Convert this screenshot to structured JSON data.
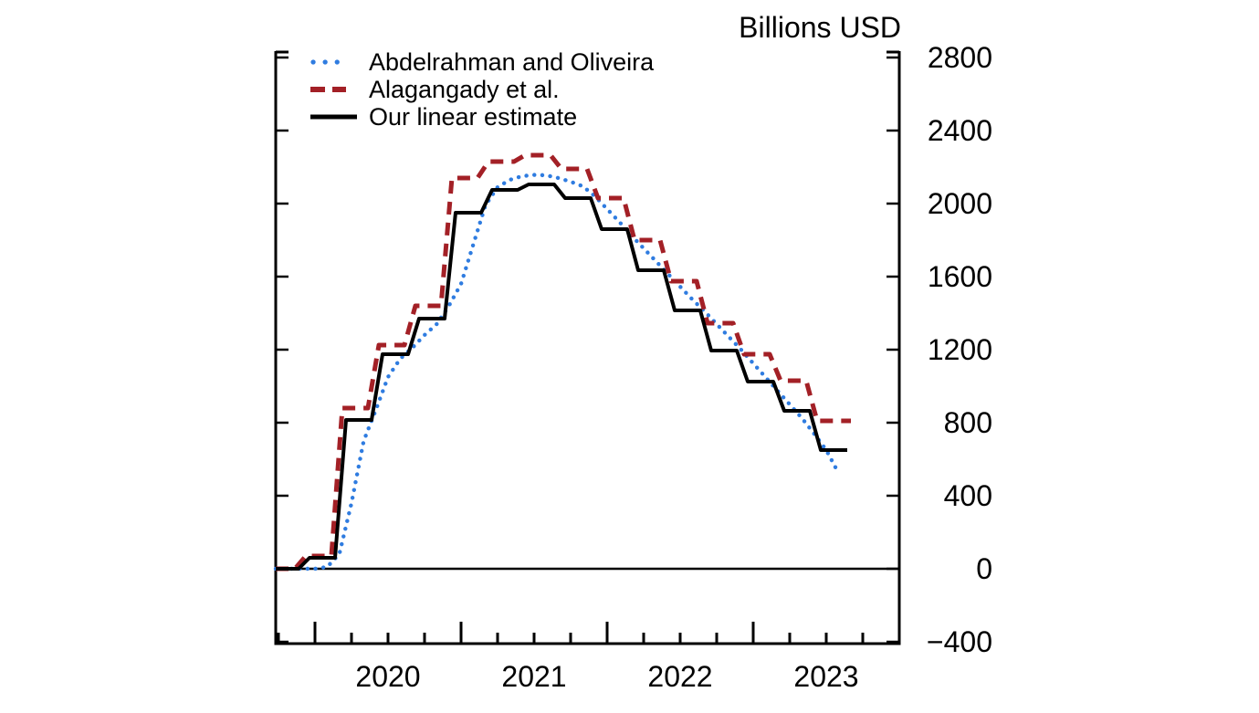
{
  "title": "Billions USD",
  "chart_data": {
    "type": "line",
    "title": "Billions USD",
    "unit": "Billions USD",
    "x_axis": {
      "labels": [
        "2020",
        "2021",
        "2022",
        "2023"
      ],
      "start": "2019-Q4",
      "end": "2024-Q1",
      "minor_ticks": "quarterly",
      "major_ticks": "yearly"
    },
    "y_axis": {
      "min": -400,
      "max": 2800,
      "step": 400,
      "ticks": [
        2800,
        2400,
        2000,
        1600,
        1200,
        800,
        400,
        0,
        -400
      ],
      "side": "right",
      "grid": false
    },
    "legend_position": "top-left-inside",
    "series": [
      {
        "name": "Abdelrahman and Oliveira",
        "color": "#2F7CE0",
        "line_style": "dotted",
        "frequency": "monthly",
        "start": "2019-10",
        "values": [
          0,
          0,
          0,
          0,
          10,
          80,
          360,
          700,
          870,
          1050,
          1150,
          1210,
          1280,
          1340,
          1440,
          1560,
          1775,
          1990,
          2090,
          2130,
          2150,
          2157,
          2155,
          2140,
          2120,
          2095,
          2040,
          1970,
          1900,
          1825,
          1755,
          1685,
          1615,
          1545,
          1475,
          1410,
          1340,
          1270,
          1200,
          1125,
          1050,
          975,
          900,
          825,
          740,
          650,
          525
        ]
      },
      {
        "name": "Alagangady et al.",
        "color": "#A32026",
        "line_style": "dashed",
        "frequency": "quarterly",
        "start": "2019-Q4",
        "values": [
          0,
          70,
          880,
          1225,
          1440,
          2140,
          2230,
          2265,
          2190,
          2030,
          1800,
          1575,
          1345,
          1175,
          1030,
          810
        ]
      },
      {
        "name": "Our linear estimate",
        "color": "#000000",
        "line_style": "solid",
        "frequency": "quarterly",
        "start": "2019-Q4",
        "values": [
          0,
          60,
          815,
          1175,
          1370,
          1950,
          2075,
          2105,
          2030,
          1860,
          1635,
          1415,
          1195,
          1025,
          865,
          650
        ]
      }
    ]
  }
}
